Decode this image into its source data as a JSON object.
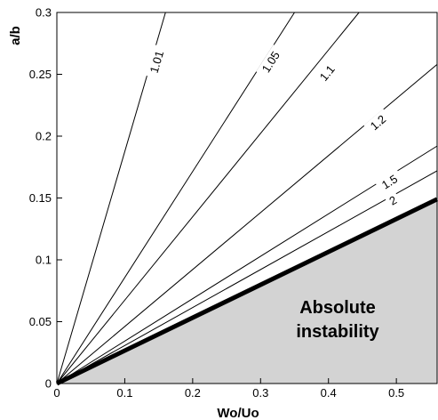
{
  "chart_data": {
    "type": "line",
    "title": "",
    "xlabel": "Wo/Uo",
    "ylabel": "a/b",
    "xlim": [
      0,
      0.56
    ],
    "ylim": [
      0,
      0.3
    ],
    "x_ticks": [
      "0",
      "0.1",
      "0.2",
      "0.3",
      "0.4",
      "0.5"
    ],
    "y_ticks": [
      "0",
      "0.05",
      "0.1",
      "0.15",
      "0.2",
      "0.25",
      "0.3"
    ],
    "grid": false,
    "series": [
      {
        "name": "1.01",
        "x": [
          0,
          0.16
        ],
        "y": [
          0,
          0.3
        ],
        "color": "#000000",
        "width": 1
      },
      {
        "name": "1.05",
        "x": [
          0,
          0.35
        ],
        "y": [
          0,
          0.3
        ],
        "color": "#000000",
        "width": 1
      },
      {
        "name": "1.1",
        "x": [
          0,
          0.445
        ],
        "y": [
          0,
          0.3
        ],
        "color": "#000000",
        "width": 1
      },
      {
        "name": "1.2",
        "x": [
          0,
          0.56
        ],
        "y": [
          0,
          0.258
        ],
        "color": "#000000",
        "width": 1
      },
      {
        "name": "1.5",
        "x": [
          0,
          0.56
        ],
        "y": [
          0,
          0.192
        ],
        "color": "#000000",
        "width": 1
      },
      {
        "name": "2",
        "x": [
          0,
          0.56
        ],
        "y": [
          0,
          0.172
        ],
        "color": "#000000",
        "width": 1
      },
      {
        "name": "",
        "x": [
          0,
          0.56
        ],
        "y": [
          0,
          0.149
        ],
        "color": "#000000",
        "width": 5
      }
    ],
    "contour_labels": [
      {
        "text": "1.01",
        "x": 0.147,
        "y": 0.26
      },
      {
        "text": "1.05",
        "x": 0.315,
        "y": 0.26
      },
      {
        "text": "1.1",
        "x": 0.398,
        "y": 0.251
      },
      {
        "text": "1.2",
        "x": 0.473,
        "y": 0.211
      },
      {
        "text": "1.5",
        "x": 0.49,
        "y": 0.163
      },
      {
        "text": "2",
        "x": 0.495,
        "y": 0.148
      }
    ],
    "shaded_region": {
      "label_lines": [
        "Absolute",
        "instability"
      ],
      "color": "#d3d3d3"
    }
  }
}
